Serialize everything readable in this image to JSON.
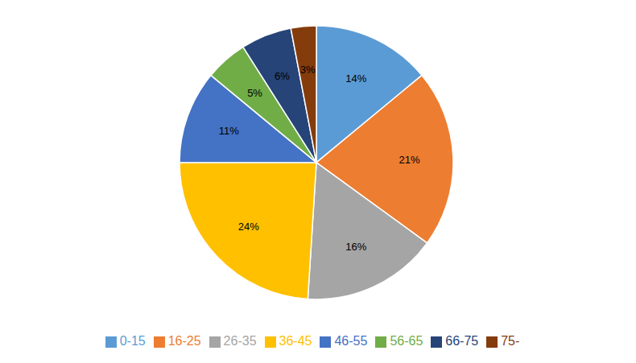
{
  "chart_data": {
    "type": "pie",
    "categories": [
      "0-15",
      "16-25",
      "26-35",
      "36-45",
      "46-55",
      "56-65",
      "66-75",
      "75-"
    ],
    "values": [
      14,
      21,
      16,
      24,
      11,
      5,
      6,
      3
    ],
    "value_labels": [
      "14%",
      "21%",
      "16%",
      "24%",
      "11%",
      "5%",
      "6%",
      "3%"
    ],
    "data_labels": true,
    "colors": [
      "#5B9BD5",
      "#ED7D31",
      "#A5A5A5",
      "#FFC000",
      "#4472C4",
      "#70AD47",
      "#264478",
      "#843C0C"
    ],
    "legend": "bottom"
  }
}
